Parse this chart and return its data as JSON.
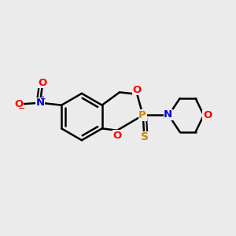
{
  "bg_color": "#ebebeb",
  "bond_color": "#000000",
  "bond_lw": 1.8,
  "figsize": [
    3.0,
    3.0
  ],
  "dpi": 100,
  "atom_colors": {
    "O": "#ff0000",
    "N": "#0000cc",
    "P": "#cc8800",
    "S": "#cc8800",
    "C": "#000000"
  }
}
